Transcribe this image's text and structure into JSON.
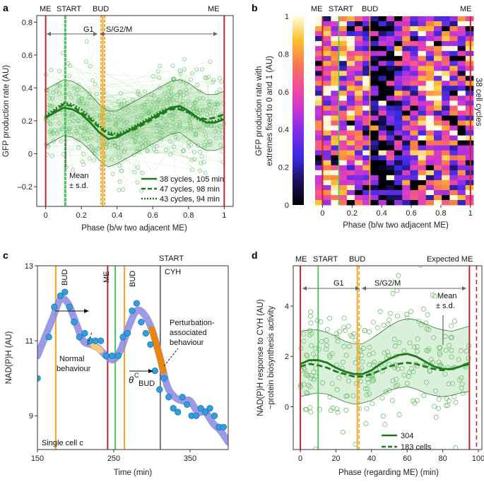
{
  "panels": {
    "a": {
      "label": "a",
      "xlabel": "Phase (b/w two adjacent ME)",
      "ylabel": "GFP production rate (AU)",
      "markers": {
        "me_left": "ME",
        "start": "START",
        "bud": "BUD",
        "me_right": "ME"
      },
      "phase_g1": "G1",
      "phase_sg2m": "S/G2/M",
      "mean_sd": [
        "Mean",
        "± s.d."
      ],
      "legend": [
        "38 cycles, 105 min",
        "47 cycles, 98 min",
        "43 cycles, 94 min"
      ]
    },
    "b": {
      "label": "b",
      "xlabel": "Phase (b/w two adjacent ME)",
      "ylabel": [
        "GFP production rate with",
        "extremes fixed to 0 and 1 (AU)"
      ],
      "markers": {
        "me_left": "ME",
        "start": "START",
        "bud": "BUD",
        "me_right": "ME"
      },
      "side_label": "38 cell cycles"
    },
    "c": {
      "label": "c",
      "xlabel": "Time (min)",
      "ylabel": "NAD(P)H (AU)",
      "markers": {
        "bud1": "BUD",
        "me": "ME",
        "start": "START",
        "bud2": "BUD",
        "cyh": "CYH"
      },
      "normal": [
        "Normal",
        "behaviour"
      ],
      "perturb": [
        "Perturbation-",
        "associated",
        "behaviour"
      ],
      "theta": "θ",
      "theta_sup": "C",
      "theta_sub": "BUD",
      "cell": "Single cell c"
    },
    "d": {
      "label": "d",
      "xlabel": "Phase (regarding ME) (min)",
      "ylabel": [
        "NAD(P)H response to CYH (AU)",
        "~protein biosynthesis activity"
      ],
      "markers": {
        "me": "ME",
        "start": "START",
        "bud": "BUD",
        "expected_me": "Expected ME"
      },
      "phase_g1": "G1",
      "phase_sg2m": "S/G2/M",
      "mean_sd": [
        "Mean",
        "± s.d."
      ],
      "legend": [
        "304",
        "183 cells"
      ]
    }
  },
  "colors": {
    "me": "#c1272d",
    "start": "#4cc35a",
    "bud": "#f7a21b",
    "green": "#2e8b2e",
    "light_green": "#7ccd7c",
    "purple": "#8a88e0",
    "blue_dot": "#2f9fe0",
    "cyh": "#222222",
    "orange_seg": "#e8860c"
  },
  "chart_data": [
    {
      "type": "scatter",
      "panel": "a",
      "xlim": [
        -0.05,
        1.05
      ],
      "ylim": [
        -0.32,
        0.84
      ],
      "xticks": [
        0,
        0.2,
        0.4,
        0.6,
        0.8,
        1
      ],
      "xtick_labels": [
        "0",
        "0.2",
        "0.4",
        "0.6",
        "0.8",
        "1"
      ],
      "yticks": [
        -0.2,
        0,
        0.2,
        0.4,
        0.6,
        0.8
      ],
      "ytick_labels": [
        "–0.2",
        "0",
        "0.2",
        "0.4",
        "0.6",
        "0.8"
      ],
      "vlines": {
        "me": [
          0,
          1
        ],
        "start": 0.11,
        "bud": [
          0.31,
          0.32,
          0.33
        ]
      },
      "series": [
        {
          "name": "38 cycles, 105 min",
          "style": "solid",
          "x": [
            0,
            0.05,
            0.1,
            0.15,
            0.2,
            0.25,
            0.3,
            0.35,
            0.4,
            0.45,
            0.5,
            0.55,
            0.6,
            0.65,
            0.7,
            0.75,
            0.8,
            0.85,
            0.9,
            0.95,
            1
          ],
          "values": [
            0.22,
            0.25,
            0.28,
            0.27,
            0.24,
            0.19,
            0.13,
            0.09,
            0.1,
            0.13,
            0.16,
            0.19,
            0.22,
            0.25,
            0.28,
            0.29,
            0.26,
            0.22,
            0.19,
            0.19,
            0.21
          ]
        },
        {
          "name": "47 cycles, 98 min",
          "style": "dashed",
          "x": [
            0,
            0.05,
            0.1,
            0.15,
            0.2,
            0.25,
            0.3,
            0.35,
            0.4,
            0.45,
            0.5,
            0.55,
            0.6,
            0.65,
            0.7,
            0.75,
            0.8,
            0.85,
            0.9,
            0.95,
            1
          ],
          "values": [
            0.22,
            0.26,
            0.3,
            0.29,
            0.25,
            0.21,
            0.16,
            0.12,
            0.11,
            0.13,
            0.15,
            0.18,
            0.21,
            0.24,
            0.27,
            0.27,
            0.25,
            0.22,
            0.21,
            0.22,
            0.24
          ]
        },
        {
          "name": "43 cycles, 94 min",
          "style": "dotted",
          "x": [
            0,
            0.05,
            0.1,
            0.15,
            0.2,
            0.25,
            0.3,
            0.35,
            0.4,
            0.45,
            0.5,
            0.55,
            0.6,
            0.65,
            0.7,
            0.75,
            0.8,
            0.85,
            0.9,
            0.95,
            1
          ],
          "values": [
            0.23,
            0.27,
            0.31,
            0.3,
            0.27,
            0.22,
            0.17,
            0.13,
            0.12,
            0.14,
            0.17,
            0.2,
            0.23,
            0.26,
            0.28,
            0.28,
            0.25,
            0.21,
            0.19,
            0.2,
            0.22
          ]
        }
      ],
      "sd": [
        0.17,
        0.17,
        0.17,
        0.17,
        0.17,
        0.17,
        0.17,
        0.17,
        0.16,
        0.16,
        0.16,
        0.16,
        0.16,
        0.16,
        0.16,
        0.16,
        0.17,
        0.17,
        0.17,
        0.17,
        0.17
      ],
      "scatter_n": 520
    },
    {
      "type": "heatmap",
      "panel": "b",
      "rows": 38,
      "cols": 20,
      "xlim": [
        -0.05,
        1.02
      ],
      "xticks": [
        0,
        0.2,
        0.4,
        0.6,
        0.8,
        1
      ],
      "xtick_labels": [
        "0",
        "0.2",
        "0.4",
        "0.6",
        "0.8",
        "1"
      ],
      "colorbar_ticks": [
        0,
        0.2,
        0.4,
        0.6,
        0.8,
        1
      ],
      "colorbar_labels": [
        "0",
        "0.2",
        "0.4",
        "0.6",
        "0.8",
        "1"
      ],
      "vlines": {
        "me": [
          0,
          1
        ],
        "start": 0.11,
        "bud": 0.32
      },
      "column_mean": [
        0.55,
        0.62,
        0.68,
        0.72,
        0.66,
        0.55,
        0.38,
        0.2,
        0.12,
        0.16,
        0.28,
        0.45,
        0.58,
        0.66,
        0.72,
        0.7,
        0.62,
        0.55,
        0.5,
        0.55
      ]
    },
    {
      "type": "line",
      "panel": "c",
      "xlim": [
        150,
        400
      ],
      "ylim": [
        8.1,
        13
      ],
      "xticks": [
        150,
        250,
        350
      ],
      "xtick_labels": [
        "150",
        "250",
        "350"
      ],
      "yticks": [
        9,
        11,
        13
      ],
      "ytick_labels": [
        "9",
        "11",
        "13"
      ],
      "vlines": {
        "bud": [
          174,
          264
        ],
        "me": [
          242
        ],
        "start": [
          252
        ],
        "cyh": [
          311
        ]
      },
      "smooth_x": [
        150,
        160,
        170,
        180,
        190,
        200,
        210,
        220,
        230,
        240,
        250,
        260,
        270,
        280,
        290,
        300,
        310,
        320,
        330,
        340,
        350,
        360,
        370,
        380,
        390,
        400
      ],
      "smooth_y": [
        10.6,
        11.1,
        11.6,
        12.1,
        12.0,
        11.5,
        11.0,
        10.9,
        10.8,
        10.6,
        10.5,
        10.8,
        11.4,
        11.8,
        11.7,
        11.3,
        10.6,
        9.8,
        9.5,
        9.4,
        9.4,
        9.1,
        9.1,
        8.8,
        8.6,
        8.3
      ],
      "points_x": [
        150,
        165,
        172,
        180,
        186,
        192,
        198,
        205,
        212,
        219,
        226,
        233,
        240,
        248,
        256,
        262,
        268,
        274,
        280,
        286,
        292,
        298,
        304,
        310,
        316,
        322,
        328,
        334,
        340,
        346,
        352,
        358,
        364,
        370,
        376,
        382,
        388,
        394,
        400
      ],
      "points_y": [
        10.0,
        11.1,
        11.9,
        12.2,
        12.3,
        11.9,
        11.5,
        11.1,
        11.2,
        11.0,
        11.0,
        11.0,
        10.6,
        10.6,
        10.6,
        11.1,
        11.2,
        11.8,
        12.0,
        11.5,
        11.2,
        10.9,
        10.2,
        9.7,
        10.0,
        9.5,
        9.2,
        9.1,
        9.5,
        9.3,
        9.0,
        9.0,
        9.2,
        9.1,
        9.2,
        9.0,
        8.7,
        8.7,
        8.0
      ]
    },
    {
      "type": "scatter",
      "panel": "d",
      "xlim": [
        -4,
        102
      ],
      "ylim": [
        -1.7,
        5.6
      ],
      "xticks": [
        0,
        20,
        40,
        60,
        80,
        100
      ],
      "xtick_labels": [
        "0",
        "20",
        "40",
        "60",
        "80",
        "100"
      ],
      "yticks": [
        0,
        2,
        4
      ],
      "ytick_labels": [
        "0",
        "2",
        "4"
      ],
      "vlines": {
        "me": 0,
        "start": 10,
        "bud": [
          32,
          33
        ],
        "me_right": 95,
        "expected_me": 99
      },
      "series": [
        {
          "name": "304",
          "style": "solid",
          "x": [
            0,
            5,
            10,
            15,
            20,
            25,
            30,
            35,
            40,
            45,
            50,
            55,
            60,
            65,
            70,
            75,
            80,
            85,
            90,
            95
          ],
          "values": [
            1.7,
            1.85,
            1.85,
            1.75,
            1.55,
            1.4,
            1.3,
            1.3,
            1.45,
            1.7,
            1.9,
            2.05,
            2.1,
            2.0,
            1.8,
            1.6,
            1.5,
            1.5,
            1.6,
            1.75
          ]
        },
        {
          "name": "183 cells",
          "style": "dashed",
          "x": [
            0,
            5,
            10,
            15,
            20,
            25,
            30,
            35,
            40,
            45,
            50,
            55,
            60,
            65,
            70,
            75,
            80,
            85,
            90,
            95
          ],
          "values": [
            1.6,
            1.7,
            1.65,
            1.55,
            1.4,
            1.3,
            1.2,
            1.2,
            1.3,
            1.45,
            1.6,
            1.7,
            1.75,
            1.7,
            1.6,
            1.5,
            1.45,
            1.5,
            1.6,
            1.7
          ]
        }
      ],
      "sd_upper": [
        3.0,
        3.05,
        3.05,
        2.95,
        2.8,
        2.6,
        2.5,
        2.5,
        2.7,
        2.95,
        3.2,
        3.4,
        3.5,
        3.45,
        3.3,
        3.15,
        3.05,
        3.0,
        3.1,
        3.2
      ],
      "sd_lower": [
        0.4,
        0.5,
        0.55,
        0.5,
        0.35,
        0.2,
        0.1,
        0.15,
        0.25,
        0.45,
        0.65,
        0.75,
        0.8,
        0.7,
        0.55,
        0.45,
        0.4,
        0.45,
        0.55,
        0.6
      ],
      "scatter_n": 260
    }
  ]
}
